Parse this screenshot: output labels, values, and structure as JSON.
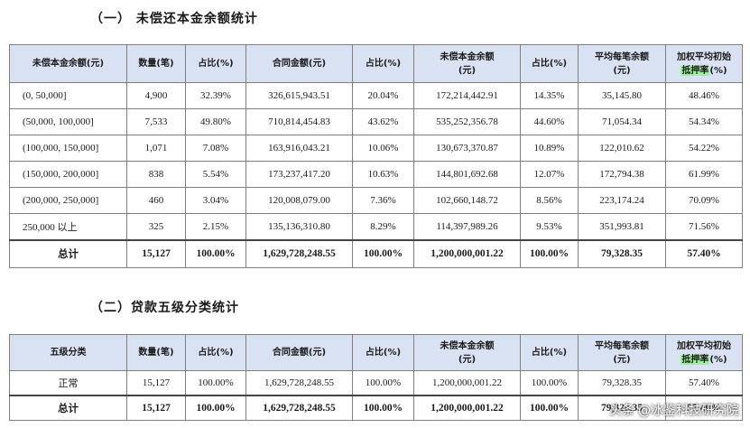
{
  "section1": {
    "title": "（一） 未偿还本金余额统计",
    "headers": [
      [
        "未偿本金余额(元)"
      ],
      [
        "数量(笔)"
      ],
      [
        "占比(%)"
      ],
      [
        "合同金额(元)"
      ],
      [
        "占比(%)"
      ],
      [
        "未偿本金余额",
        "(元)"
      ],
      [
        "占比(%)"
      ],
      [
        "平均每笔余额",
        "(元)"
      ],
      [
        "加权平均初始",
        "抵押率",
        "(%)"
      ]
    ],
    "rows": [
      [
        "(0, 50,000]",
        "4,900",
        "32.39%",
        "326,615,943.51",
        "20.04%",
        "172,214,442.91",
        "14.35%",
        "35,145.80",
        "48.46%"
      ],
      [
        "(50,000, 100,000]",
        "7,533",
        "49.80%",
        "710,814,454.83",
        "43.62%",
        "535,252,356.78",
        "44.60%",
        "71,054.34",
        "54.34%"
      ],
      [
        "(100,000, 150,000]",
        "1,071",
        "7.08%",
        "163,916,043.21",
        "10.06%",
        "130,673,370.87",
        "10.89%",
        "122,010.62",
        "54.22%"
      ],
      [
        "(150,000, 200,000]",
        "838",
        "5.54%",
        "173,237,417.20",
        "10.63%",
        "144,801,692.68",
        "12.07%",
        "172,794.38",
        "61.99%"
      ],
      [
        "(200,000, 250,000]",
        "460",
        "3.04%",
        "120,008,079.00",
        "7.36%",
        "102,660,148.72",
        "8.56%",
        "223,174.24",
        "70.09%"
      ],
      [
        "250,000 以上",
        "325",
        "2.15%",
        "135,136,310.80",
        "8.29%",
        "114,397,989.26",
        "9.53%",
        "351,993.81",
        "71.56%"
      ]
    ],
    "total": [
      "总计",
      "15,127",
      "100.00%",
      "1,629,728,248.55",
      "100.00%",
      "1,200,000,001.22",
      "100.00%",
      "79,328.35",
      "57.40%"
    ]
  },
  "section2": {
    "title": "（二）贷款五级分类统计",
    "headers": [
      [
        "五级分类"
      ],
      [
        "数量(笔)"
      ],
      [
        "占比(%)"
      ],
      [
        "合同金额(元)"
      ],
      [
        "占比(%)"
      ],
      [
        "未偿本金余额",
        "(元)"
      ],
      [
        "占比(%)"
      ],
      [
        "平均每笔余额",
        "(元)"
      ],
      [
        "加权平均初始",
        "抵押率",
        "(%)"
      ]
    ],
    "rows": [
      [
        "正常",
        "15,127",
        "100.00%",
        "1,629,728,248.55",
        "100.00%",
        "1,200,000,001.22",
        "100.00%",
        "79,328.35",
        "57.40%"
      ]
    ],
    "total": [
      "总计",
      "15,127",
      "100.00%",
      "1,629,728,248.55",
      "100.00%",
      "1,200,000,001.22",
      "100.00%",
      "79,328.35",
      "57.40%"
    ]
  },
  "watermark": {
    "platform": "头条",
    "handle": "@冰鉴科技研究院"
  }
}
